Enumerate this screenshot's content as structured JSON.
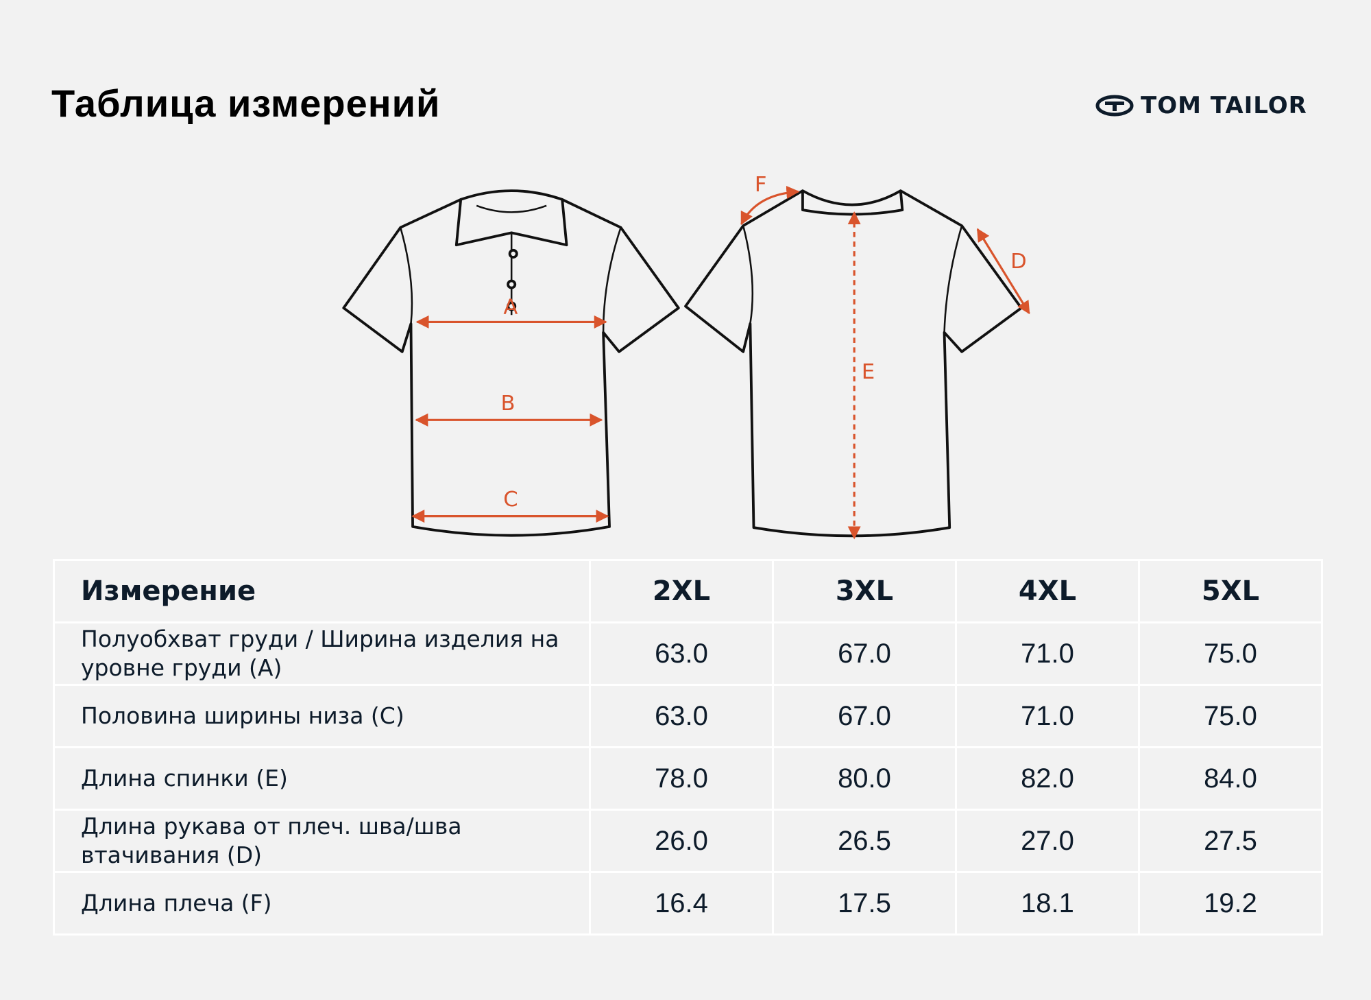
{
  "header": {
    "title": "Таблица измерений",
    "brand": "TOM TAILOR"
  },
  "diagram": {
    "labels": [
      "A",
      "B",
      "C",
      "D",
      "E",
      "F"
    ]
  },
  "table": {
    "columns": [
      "Измерение",
      "2XL",
      "3XL",
      "4XL",
      "5XL"
    ],
    "rows": [
      [
        "Полуобхват груди / Ширина изделия на уровне груди (A)",
        "63.0",
        "67.0",
        "71.0",
        "75.0"
      ],
      [
        "Половина ширины низа (C)",
        "63.0",
        "67.0",
        "71.0",
        "75.0"
      ],
      [
        "Длина спинки (E)",
        "78.0",
        "80.0",
        "82.0",
        "84.0"
      ],
      [
        "Длина рукава от плеч. шва/шва втачивания (D)",
        "26.0",
        "26.5",
        "27.0",
        "27.5"
      ],
      [
        "Длина плеча (F)",
        "16.4",
        "17.5",
        "18.1",
        "19.2"
      ]
    ]
  }
}
